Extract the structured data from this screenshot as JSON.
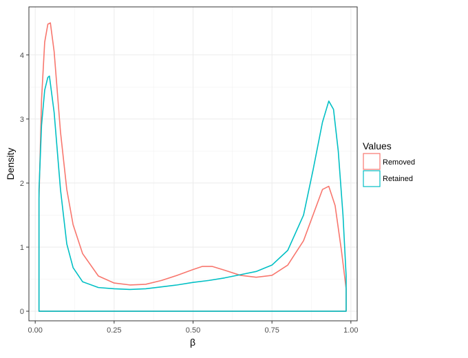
{
  "chart_data": {
    "type": "line",
    "xlabel": "β",
    "ylabel": "Density",
    "xlim": [
      -0.02,
      1.02
    ],
    "ylim": [
      -0.15,
      4.75
    ],
    "x_ticks": [
      0.0,
      0.25,
      0.5,
      0.75,
      1.0
    ],
    "x_tick_labels": [
      "0.00",
      "0.25",
      "0.50",
      "0.75",
      "1.00"
    ],
    "y_ticks": [
      0,
      1,
      2,
      3,
      4
    ],
    "y_tick_labels": [
      "0",
      "1",
      "2",
      "3",
      "4"
    ],
    "grid": true,
    "legend": {
      "title": "Values",
      "position": "right"
    },
    "series": [
      {
        "name": "Removed",
        "color": "#F8766D",
        "x": [
          0.012,
          0.02,
          0.03,
          0.04,
          0.048,
          0.06,
          0.08,
          0.1,
          0.12,
          0.15,
          0.2,
          0.25,
          0.3,
          0.35,
          0.4,
          0.45,
          0.5,
          0.53,
          0.56,
          0.6,
          0.65,
          0.7,
          0.75,
          0.8,
          0.85,
          0.88,
          0.91,
          0.93,
          0.95,
          0.97,
          0.985
        ],
        "y": [
          1.75,
          3.3,
          4.2,
          4.48,
          4.5,
          4.05,
          2.8,
          1.9,
          1.35,
          0.9,
          0.55,
          0.44,
          0.41,
          0.42,
          0.48,
          0.56,
          0.65,
          0.7,
          0.7,
          0.64,
          0.56,
          0.53,
          0.56,
          0.72,
          1.1,
          1.5,
          1.9,
          1.95,
          1.65,
          0.95,
          0.35
        ]
      },
      {
        "name": "Retained",
        "color": "#00BFC4",
        "x": [
          0.012,
          0.02,
          0.03,
          0.04,
          0.045,
          0.06,
          0.08,
          0.1,
          0.12,
          0.15,
          0.2,
          0.25,
          0.3,
          0.35,
          0.4,
          0.45,
          0.5,
          0.55,
          0.6,
          0.65,
          0.7,
          0.75,
          0.8,
          0.85,
          0.88,
          0.91,
          0.93,
          0.945,
          0.96,
          0.975,
          0.985
        ],
        "y": [
          1.9,
          2.9,
          3.45,
          3.65,
          3.67,
          3.1,
          1.9,
          1.05,
          0.68,
          0.46,
          0.37,
          0.35,
          0.34,
          0.35,
          0.38,
          0.41,
          0.45,
          0.48,
          0.52,
          0.57,
          0.62,
          0.72,
          0.95,
          1.5,
          2.2,
          2.95,
          3.28,
          3.15,
          2.5,
          1.5,
          0.55
        ]
      }
    ]
  }
}
